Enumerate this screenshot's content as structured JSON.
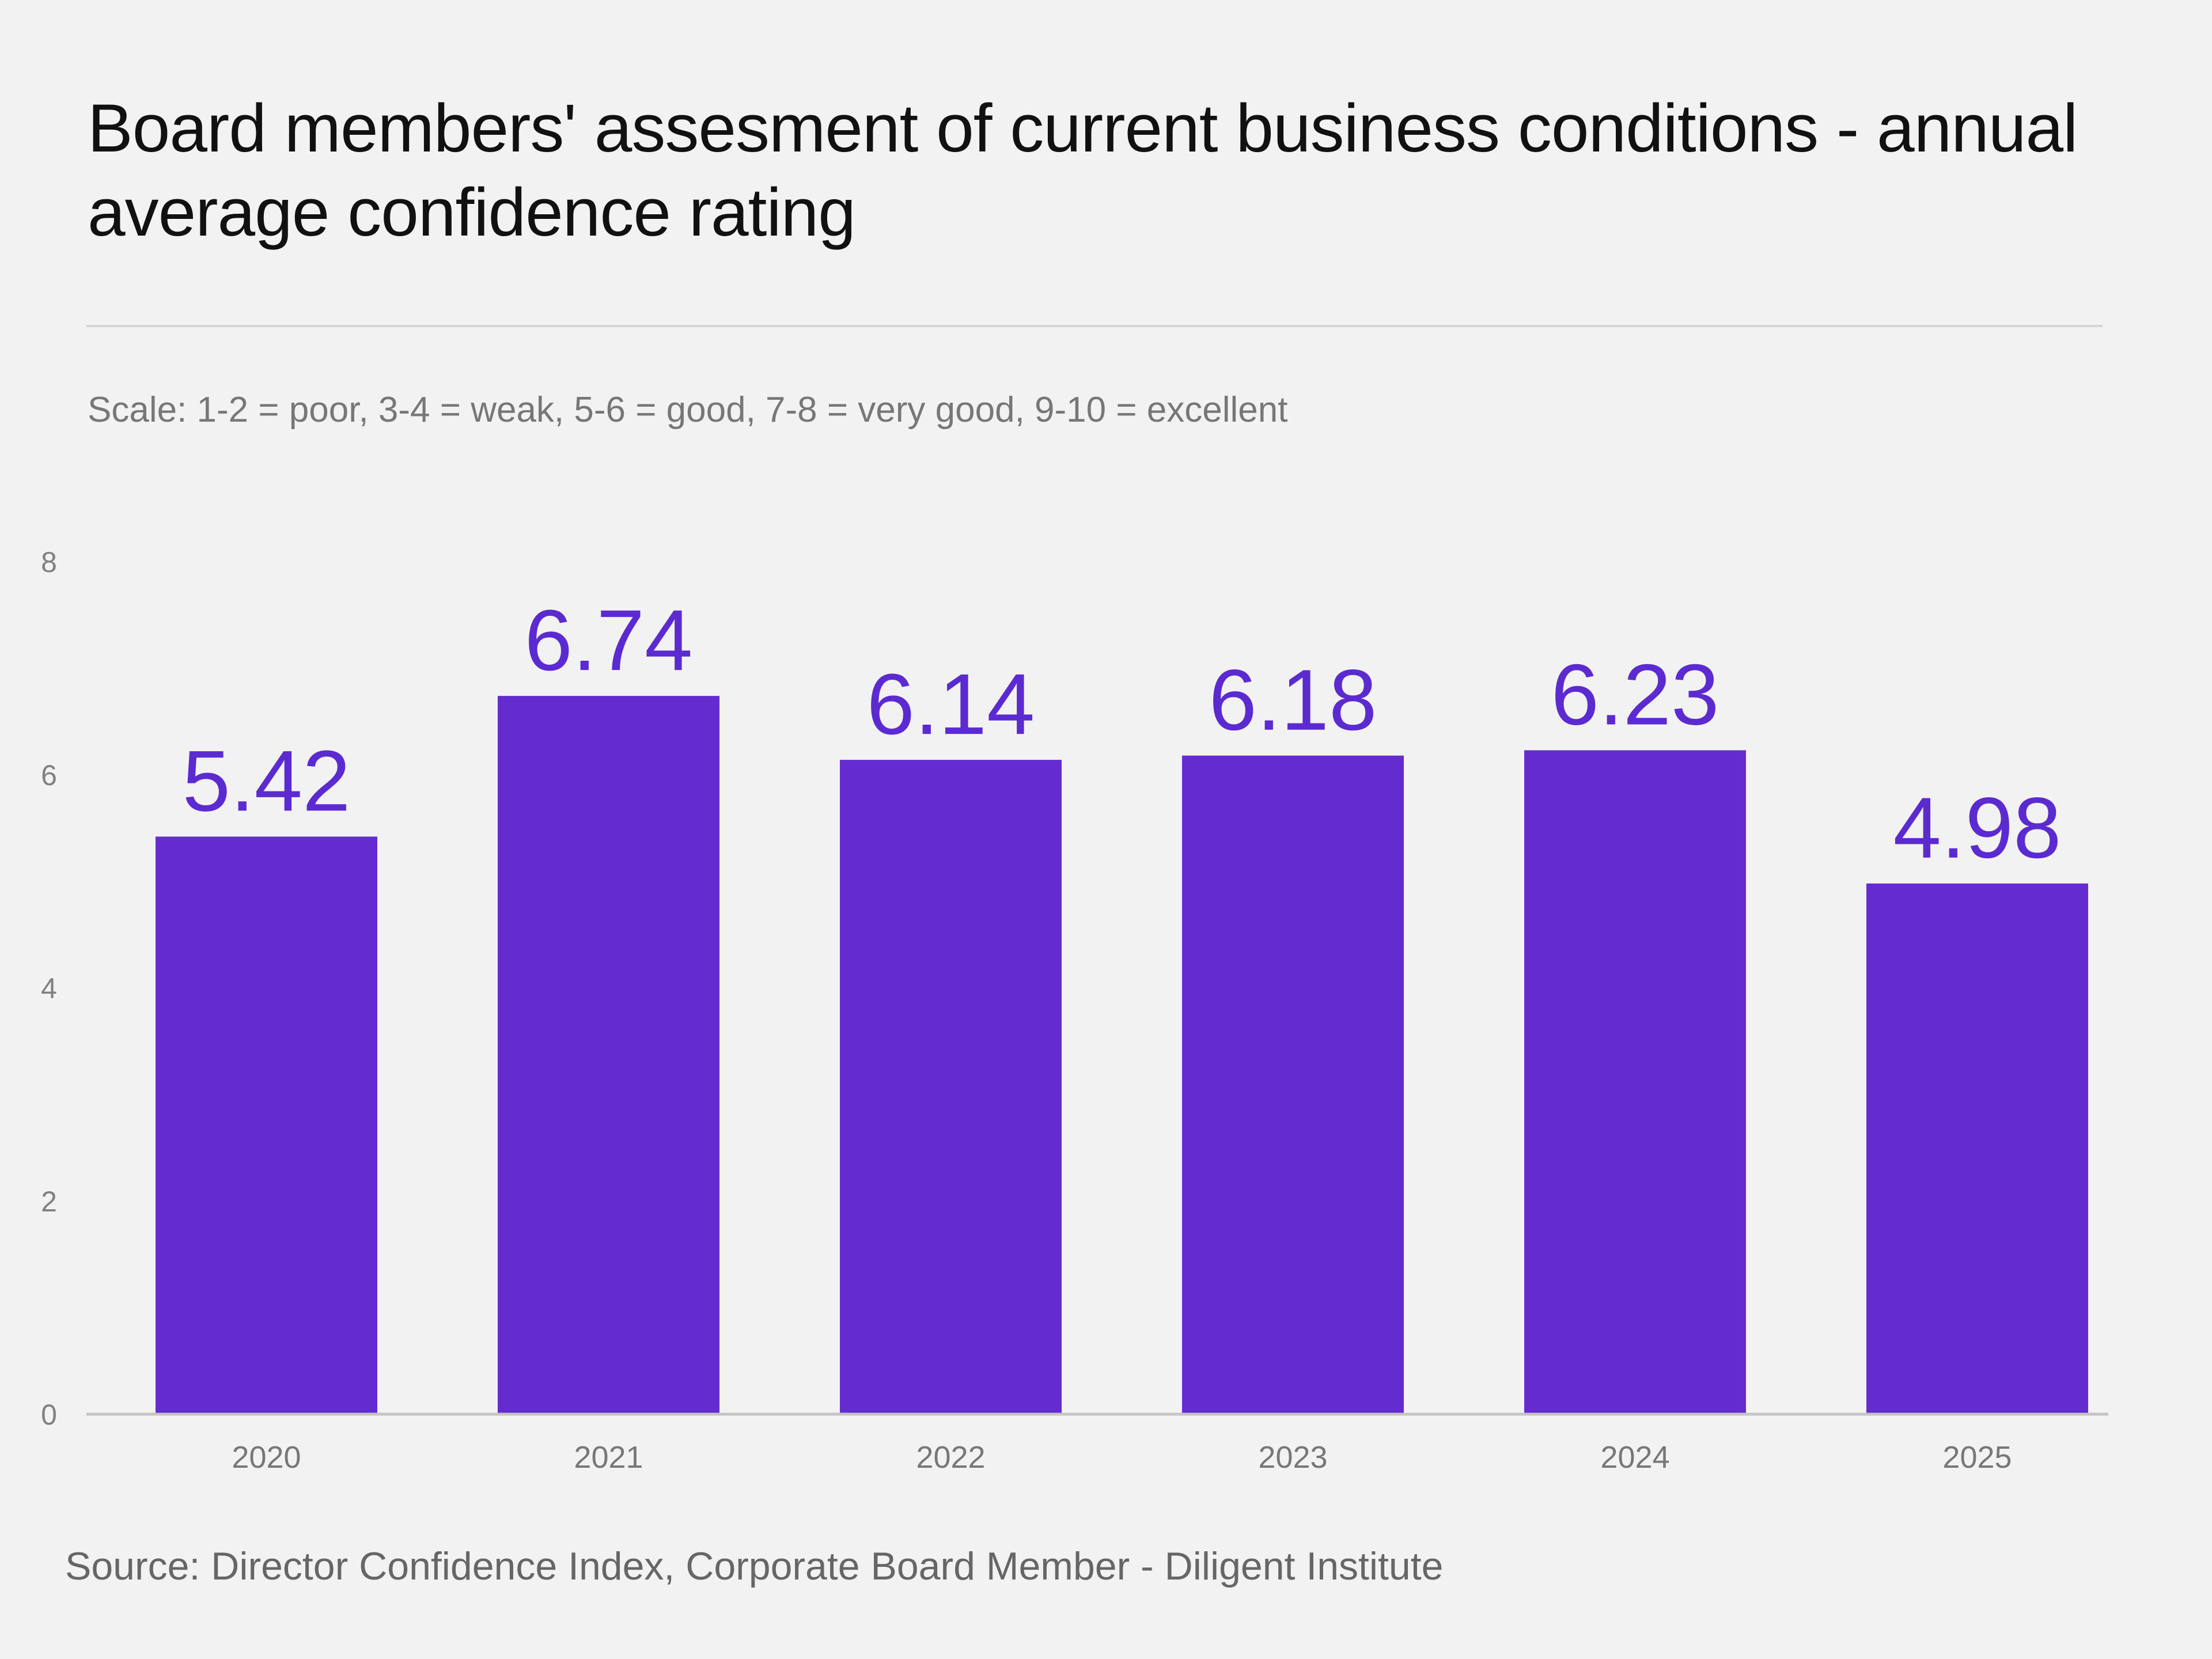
{
  "chart_data": {
    "type": "bar",
    "title": "Board members' assesment of current business conditions - annual average confidence rating",
    "subtitle": "Scale: 1-2 = poor, 3-4 = weak, 5-6 = good, 7-8 = very good, 9-10 = excellent",
    "source": "Source: Director Confidence Index, Corporate Board Member - Diligent Institute",
    "categories": [
      "2020",
      "2021",
      "2022",
      "2023",
      "2024",
      "2025"
    ],
    "values": [
      5.42,
      6.74,
      6.14,
      6.18,
      6.23,
      4.98
    ],
    "data_labels": [
      "5.42",
      "6.74",
      "6.14",
      "6.18",
      "6.23",
      "4.98"
    ],
    "ylim": [
      0,
      8
    ],
    "yticks": [
      "0",
      "2",
      "4",
      "6",
      "8"
    ],
    "grid": false,
    "legend": "none",
    "colors": {
      "bar": "#642ccf",
      "label": "#5b2bd1",
      "background": "#f2f2f2"
    }
  }
}
